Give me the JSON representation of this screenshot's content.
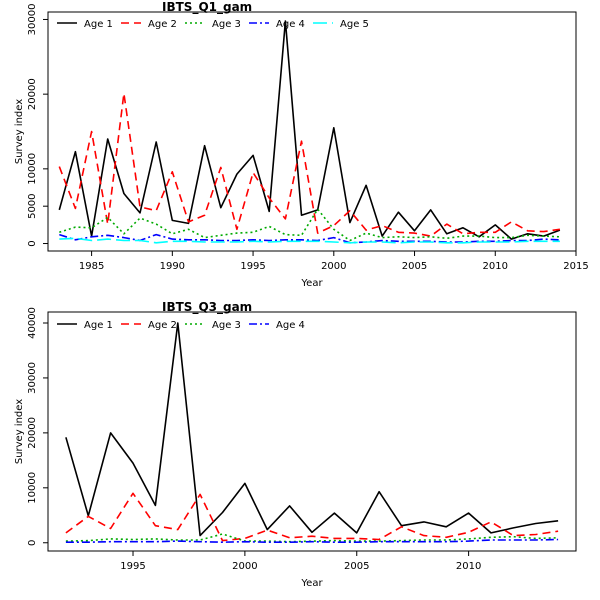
{
  "chart_data": [
    {
      "type": "line",
      "title": "IBTS_Q1_gam",
      "xlabel": "Year",
      "ylabel": "Survey index",
      "xlim": [
        1982.3,
        2015
      ],
      "ylim": [
        -1000,
        31000
      ],
      "xticks": [
        1985,
        1990,
        1995,
        2000,
        2005,
        2010,
        2015
      ],
      "yticks": [
        0,
        5000,
        10000,
        20000,
        30000
      ],
      "legend_position": "top-left",
      "x": [
        1983,
        1984,
        1985,
        1986,
        1987,
        1988,
        1989,
        1990,
        1991,
        1992,
        1993,
        1994,
        1995,
        1996,
        1997,
        1998,
        1999,
        2000,
        2001,
        2002,
        2003,
        2004,
        2005,
        2006,
        2007,
        2008,
        2009,
        2010,
        2011,
        2012,
        2013,
        2014
      ],
      "series": [
        {
          "name": "Age 1",
          "color": "#000000",
          "dash": "",
          "values": [
            4500,
            12300,
            1000,
            14000,
            6700,
            4100,
            13600,
            3100,
            2700,
            13100,
            4800,
            9300,
            11800,
            4300,
            29800,
            3800,
            4500,
            15500,
            2800,
            7800,
            1000,
            4200,
            1700,
            4500,
            1300,
            2100,
            900,
            2500,
            600,
            1300,
            1000,
            1800
          ]
        },
        {
          "name": "Age 2",
          "color": "#ff0000",
          "dash": "8,5",
          "values": [
            10300,
            4700,
            15000,
            2600,
            20100,
            4900,
            4400,
            9600,
            2900,
            3800,
            10200,
            1900,
            9500,
            6100,
            3300,
            13700,
            1400,
            2400,
            4400,
            1800,
            2400,
            1500,
            1400,
            1000,
            2600,
            1300,
            1500,
            1500,
            2900,
            1700,
            1600,
            1900
          ]
        },
        {
          "name": "Age 3",
          "color": "#00aa00",
          "dash": "2,3",
          "values": [
            1500,
            2200,
            2100,
            3500,
            1300,
            3400,
            2600,
            1300,
            1900,
            800,
            1100,
            1400,
            1500,
            2300,
            1200,
            1100,
            4600,
            1900,
            400,
            1400,
            800,
            900,
            800,
            900,
            700,
            1000,
            1000,
            800,
            800,
            1100,
            1000,
            900
          ]
        },
        {
          "name": "Age 4",
          "color": "#0000ff",
          "dash": "8,3,2,3",
          "values": [
            1200,
            500,
            900,
            1100,
            800,
            400,
            1200,
            600,
            500,
            500,
            400,
            400,
            500,
            400,
            500,
            500,
            400,
            800,
            100,
            200,
            400,
            300,
            300,
            300,
            200,
            200,
            300,
            300,
            400,
            400,
            600,
            500
          ]
        },
        {
          "name": "Age 5",
          "color": "#00ffff",
          "dash": "14,5",
          "values": [
            600,
            700,
            400,
            600,
            400,
            400,
            100,
            300,
            300,
            200,
            200,
            200,
            300,
            200,
            300,
            300,
            300,
            200,
            100,
            200,
            200,
            100,
            200,
            200,
            100,
            100,
            200,
            200,
            200,
            300,
            300,
            300
          ]
        }
      ]
    },
    {
      "type": "line",
      "title": "IBTS_Q3_gam",
      "xlabel": "Year",
      "ylabel": "Survey index",
      "xlim": [
        1991.2,
        2014.8
      ],
      "ylim": [
        -1500,
        42000
      ],
      "xticks": [
        1995,
        2000,
        2005,
        2010
      ],
      "yticks": [
        0,
        10000,
        20000,
        30000,
        40000
      ],
      "legend_position": "top-left",
      "x": [
        1992,
        1993,
        1994,
        1995,
        1996,
        1997,
        1998,
        1999,
        2000,
        2001,
        2002,
        2003,
        2004,
        2005,
        2006,
        2007,
        2008,
        2009,
        2010,
        2011,
        2012,
        2013,
        2014
      ],
      "series": [
        {
          "name": "Age 1",
          "color": "#000000",
          "dash": "",
          "values": [
            19200,
            4900,
            20000,
            14500,
            6800,
            40000,
            1300,
            5500,
            10800,
            2400,
            6700,
            1900,
            5400,
            1800,
            9300,
            3100,
            3800,
            2900,
            5400,
            1800,
            2700,
            3500,
            4000
          ]
        },
        {
          "name": "Age 2",
          "color": "#ff0000",
          "dash": "8,5",
          "values": [
            1800,
            4800,
            2600,
            9000,
            3100,
            2400,
            8800,
            400,
            800,
            2300,
            900,
            1200,
            800,
            800,
            600,
            2900,
            1300,
            1000,
            1900,
            3800,
            1300,
            1500,
            2100
          ]
        },
        {
          "name": "Age 3",
          "color": "#00aa00",
          "dash": "2,3",
          "values": [
            300,
            400,
            700,
            600,
            700,
            500,
            500,
            1600,
            300,
            300,
            200,
            300,
            400,
            300,
            300,
            400,
            500,
            500,
            700,
            1000,
            1100,
            800,
            900
          ]
        },
        {
          "name": "Age 4",
          "color": "#0000ff",
          "dash": "8,3,2,3",
          "values": [
            100,
            100,
            200,
            200,
            200,
            300,
            200,
            100,
            200,
            100,
            100,
            200,
            100,
            100,
            200,
            200,
            200,
            200,
            300,
            500,
            500,
            500,
            600
          ]
        }
      ]
    }
  ]
}
